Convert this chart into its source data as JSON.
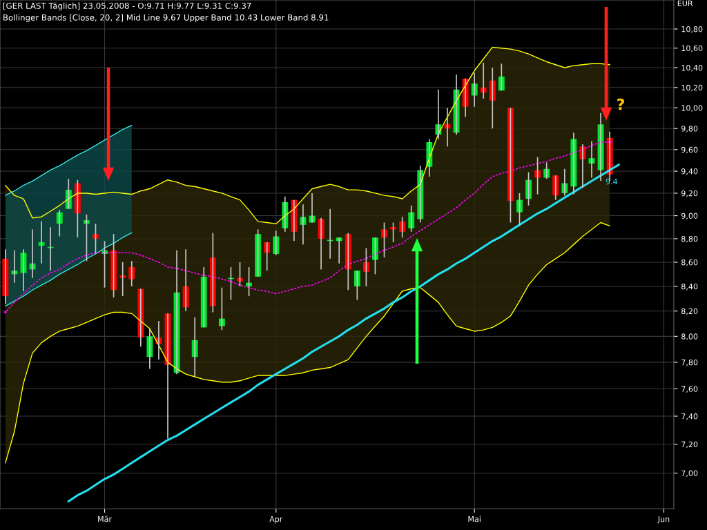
{
  "chart_data": {
    "type": "candlestick",
    "title": "[GER LAST Täglich] 23.05.2008 - O:9.71 H:9.77 L:9.31 C:9.37",
    "subtitle": "Bollinger Bands [Close, 20, 2] Mid Line 9.67 Upper Band 10.43 Lower Band 8.91",
    "ylabel": "EUR",
    "categories": [
      null,
      null,
      null,
      null,
      null,
      null,
      null,
      null,
      null,
      null,
      null,
      "Mär",
      null,
      null,
      null,
      null,
      null,
      null,
      null,
      null,
      null,
      null,
      null,
      null,
      null,
      null,
      null,
      null,
      null,
      null,
      "Apr",
      null,
      null,
      null,
      null,
      null,
      null,
      null,
      null,
      null,
      null,
      null,
      null,
      null,
      null,
      null,
      null,
      null,
      null,
      null,
      null,
      null,
      "Mai",
      null,
      null,
      null,
      null,
      null,
      null,
      null,
      null,
      null,
      null,
      null,
      null,
      null,
      null,
      null,
      null,
      null,
      null,
      null,
      null,
      "Jun"
    ],
    "ohlc": [
      [
        8.63,
        8.71,
        8.26,
        8.32
      ],
      [
        8.5,
        8.7,
        8.43,
        8.53
      ],
      [
        8.51,
        8.71,
        8.36,
        8.68
      ],
      [
        8.54,
        8.88,
        8.47,
        8.59
      ],
      [
        8.74,
        8.95,
        8.59,
        8.77
      ],
      [
        8.72,
        8.9,
        8.53,
        8.73
      ],
      [
        8.93,
        9.05,
        8.82,
        9.03
      ],
      [
        9.06,
        9.33,
        9.06,
        9.23
      ],
      [
        9.29,
        9.32,
        8.81,
        9.02
      ],
      [
        8.93,
        9.01,
        8.61,
        8.96
      ],
      [
        8.84,
        8.93,
        8.67,
        8.8
      ],
      [
        8.67,
        8.78,
        8.39,
        8.7
      ],
      [
        8.7,
        8.84,
        8.31,
        8.37
      ],
      [
        8.49,
        8.6,
        8.32,
        8.47
      ],
      [
        8.56,
        8.61,
        8.4,
        8.46
      ],
      [
        8.38,
        8.38,
        7.92,
        7.99
      ],
      [
        7.84,
        8.06,
        7.75,
        8.0
      ],
      [
        7.99,
        8.12,
        7.82,
        7.94
      ],
      [
        8.18,
        8.18,
        7.24,
        7.78
      ],
      [
        7.72,
        8.7,
        7.71,
        8.35
      ],
      [
        8.4,
        8.71,
        8.2,
        8.23
      ],
      [
        7.84,
        8.15,
        7.69,
        7.97
      ],
      [
        8.07,
        8.56,
        8.07,
        8.48
      ],
      [
        8.64,
        8.85,
        8.19,
        8.24
      ],
      [
        8.08,
        8.39,
        8.05,
        8.14
      ],
      [
        8.46,
        8.56,
        8.29,
        8.47
      ],
      [
        8.47,
        8.6,
        8.4,
        8.44
      ],
      [
        8.4,
        8.56,
        8.32,
        8.43
      ],
      [
        8.48,
        8.88,
        8.48,
        8.84
      ],
      [
        8.77,
        8.77,
        8.53,
        8.68
      ],
      [
        8.67,
        8.87,
        8.66,
        8.82
      ],
      [
        8.89,
        9.17,
        8.86,
        9.12
      ],
      [
        9.14,
        9.14,
        8.78,
        8.86
      ],
      [
        8.92,
        9.1,
        8.75,
        8.99
      ],
      [
        8.94,
        9.2,
        8.94,
        9.0
      ],
      [
        8.97,
        8.98,
        8.54,
        8.8
      ],
      [
        8.78,
        9.06,
        8.63,
        8.79
      ],
      [
        8.78,
        8.81,
        8.59,
        8.81
      ],
      [
        8.84,
        8.85,
        8.37,
        8.54
      ],
      [
        8.4,
        8.53,
        8.29,
        8.53
      ],
      [
        8.6,
        8.72,
        8.4,
        8.52
      ],
      [
        8.62,
        8.81,
        8.5,
        8.81
      ],
      [
        8.88,
        8.94,
        8.64,
        8.81
      ],
      [
        8.9,
        8.94,
        8.77,
        8.88
      ],
      [
        8.95,
        8.99,
        8.81,
        8.86
      ],
      [
        8.89,
        9.09,
        8.86,
        9.03
      ],
      [
        8.97,
        9.45,
        8.94,
        9.41
      ],
      [
        9.44,
        9.7,
        9.35,
        9.67
      ],
      [
        9.74,
        10.18,
        9.7,
        9.84
      ],
      [
        9.84,
        10.0,
        9.63,
        9.8
      ],
      [
        9.76,
        10.33,
        9.74,
        10.18
      ],
      [
        10.29,
        10.29,
        9.91,
        10.01
      ],
      [
        10.12,
        10.35,
        10.01,
        10.24
      ],
      [
        10.2,
        10.45,
        10.09,
        10.15
      ],
      [
        10.27,
        10.4,
        9.8,
        10.07
      ],
      [
        10.17,
        10.44,
        10.17,
        10.31
      ],
      [
        10.0,
        10.0,
        8.94,
        9.13
      ],
      [
        9.03,
        9.2,
        8.91,
        9.14
      ],
      [
        9.15,
        9.39,
        9.09,
        9.32
      ],
      [
        9.41,
        9.53,
        9.19,
        9.34
      ],
      [
        9.34,
        9.48,
        9.33,
        9.42
      ],
      [
        9.36,
        9.36,
        9.14,
        9.18
      ],
      [
        9.2,
        9.42,
        9.18,
        9.29
      ],
      [
        9.26,
        9.76,
        9.19,
        9.7
      ],
      [
        9.63,
        9.65,
        9.25,
        9.51
      ],
      [
        9.47,
        9.68,
        9.34,
        9.52
      ],
      [
        9.41,
        9.95,
        9.31,
        9.84
      ],
      [
        9.71,
        9.77,
        9.31,
        9.37
      ],
      null,
      null,
      null,
      null,
      null,
      null
    ],
    "colors": [
      "#ff0000",
      "#00e62e",
      "#00e62e",
      "#00e62e",
      "#00e62e",
      "#00e62e",
      "#00e62e",
      "#00e62e",
      "#ff0000",
      "#00e62e",
      "#ff0000",
      "#00e62e",
      "#ff0000",
      "#ff0000",
      "#ff0000",
      "#ff0000",
      "#00e62e",
      "#ff0000",
      "#ff0000",
      "#00e62e",
      "#ff0000",
      "#00e62e",
      "#00e62e",
      "#ff0000",
      "#00e62e",
      "#00e62e",
      "#ff0000",
      "#00e62e",
      "#00e62e",
      "#ff0000",
      "#00e62e",
      "#00e62e",
      "#ff0000",
      "#00e62e",
      "#00e62e",
      "#ff0000",
      "#00e62e",
      "#00e62e",
      "#ff0000",
      "#00e62e",
      "#ff0000",
      "#00e62e",
      "#ff0000",
      "#ff0000",
      "#ff0000",
      "#00e62e",
      "#00e62e",
      "#00e62e",
      "#00e62e",
      "#ff0000",
      "#00e62e",
      "#ff0000",
      "#00e62e",
      "#ff0000",
      "#ff0000",
      "#00e62e",
      "#ff0000",
      "#00e62e",
      "#00e62e",
      "#ff0000",
      "#00e62e",
      "#ff0000",
      "#00e62e",
      "#00e62e",
      "#ff0000",
      "#00e62e",
      "#00e62e",
      "#ff0000",
      null,
      null,
      null,
      null,
      null,
      null
    ],
    "series": [
      {
        "type": "line",
        "color": "#ffff00",
        "values": [
          9.27,
          9.18,
          9.15,
          8.98,
          8.99,
          9.04,
          9.09,
          9.15,
          9.2,
          9.2,
          9.19,
          9.2,
          9.21,
          9.2,
          9.19,
          9.22,
          9.24,
          9.28,
          9.32,
          9.3,
          9.27,
          9.26,
          9.24,
          9.22,
          9.2,
          9.17,
          9.14,
          9.05,
          8.95,
          8.94,
          8.93,
          9.0,
          9.06,
          9.15,
          9.24,
          9.26,
          9.28,
          9.26,
          9.23,
          9.23,
          9.22,
          9.2,
          9.18,
          9.17,
          9.15,
          9.22,
          9.28,
          9.52,
          9.75,
          9.91,
          10.07,
          10.22,
          10.37,
          10.49,
          10.61,
          10.6,
          10.59,
          10.57,
          10.54,
          10.5,
          10.46,
          10.43,
          10.4,
          10.42,
          10.43,
          10.44,
          10.44,
          10.43,
          null,
          null,
          null,
          null,
          null,
          null
        ]
      },
      {
        "type": "line",
        "color": "#ffff00",
        "values": [
          7.07,
          7.29,
          7.64,
          7.87,
          7.95,
          8.0,
          8.04,
          8.06,
          8.08,
          8.11,
          8.14,
          8.17,
          8.19,
          8.19,
          8.18,
          8.12,
          8.06,
          7.93,
          7.8,
          7.75,
          7.71,
          7.69,
          7.67,
          7.66,
          7.65,
          7.65,
          7.66,
          7.68,
          7.7,
          7.7,
          7.7,
          7.7,
          7.71,
          7.72,
          7.74,
          7.75,
          7.76,
          7.79,
          7.82,
          7.91,
          8.0,
          8.08,
          8.16,
          8.26,
          8.36,
          8.38,
          8.39,
          8.33,
          8.27,
          8.17,
          8.08,
          8.06,
          8.04,
          8.05,
          8.07,
          8.11,
          8.16,
          8.28,
          8.41,
          8.5,
          8.58,
          8.63,
          8.68,
          8.75,
          8.82,
          8.88,
          8.94,
          8.91,
          null,
          null,
          null,
          null,
          null,
          null
        ]
      },
      {
        "type": "line",
        "color": "#33e6e6",
        "values": [
          9.18,
          9.22,
          9.27,
          9.31,
          9.36,
          9.41,
          9.45,
          9.5,
          9.55,
          9.59,
          9.64,
          9.69,
          9.74,
          9.79,
          9.83,
          null,
          null,
          null,
          null,
          null,
          null,
          null,
          null,
          null,
          null,
          null,
          null,
          null,
          null,
          null,
          null,
          null,
          null,
          null,
          null,
          null,
          null,
          null,
          null,
          null,
          null,
          null,
          null,
          null,
          null,
          null,
          null,
          null,
          null,
          null,
          null,
          null,
          null,
          null,
          null,
          null,
          null,
          null,
          null,
          null,
          null,
          null,
          null,
          null,
          null,
          null,
          null,
          null,
          null,
          null,
          null,
          null,
          null,
          null
        ]
      },
      {
        "type": "line",
        "color": "#33e6e6",
        "values": [
          8.24,
          8.28,
          8.32,
          8.37,
          8.41,
          8.45,
          8.5,
          8.54,
          8.58,
          8.63,
          8.67,
          8.72,
          8.76,
          8.81,
          8.85,
          null,
          null,
          null,
          null,
          null,
          null,
          null,
          null,
          null,
          null,
          null,
          null,
          null,
          null,
          null,
          null,
          null,
          null,
          null,
          null,
          null,
          null,
          null,
          null,
          null,
          null,
          null,
          null,
          null,
          null,
          null,
          null,
          null,
          null,
          null,
          null,
          null,
          null,
          null,
          null,
          null,
          null,
          null,
          null,
          null,
          null,
          null,
          null,
          null,
          null,
          null,
          null,
          null,
          null,
          null,
          null,
          null,
          null,
          null
        ]
      },
      {
        "type": "line",
        "color": "#ff00ff",
        "line_style": "dotted",
        "values": [
          8.19,
          8.27,
          8.34,
          8.41,
          8.47,
          8.51,
          8.54,
          8.59,
          8.63,
          8.66,
          8.68,
          8.68,
          8.68,
          8.68,
          8.68,
          8.66,
          8.63,
          8.6,
          8.56,
          8.55,
          8.53,
          8.51,
          8.49,
          8.48,
          8.46,
          8.44,
          8.41,
          8.39,
          8.37,
          8.36,
          8.34,
          8.36,
          8.38,
          8.4,
          8.41,
          8.44,
          8.47,
          8.53,
          8.58,
          8.61,
          8.63,
          8.67,
          8.7,
          8.73,
          8.76,
          8.82,
          8.87,
          8.92,
          8.97,
          9.02,
          9.07,
          9.14,
          9.2,
          9.28,
          9.35,
          9.38,
          9.4,
          9.43,
          9.45,
          9.47,
          9.49,
          9.52,
          9.54,
          9.57,
          9.6,
          9.64,
          9.67,
          9.67,
          null,
          null,
          null,
          null,
          null,
          null
        ],
        "upper": [
          9.27,
          9.18,
          9.15,
          8.98,
          8.99,
          9.04,
          9.09,
          9.15,
          9.2,
          9.2,
          9.19,
          9.2,
          9.21,
          9.2,
          9.19,
          9.22,
          9.24,
          9.28,
          9.32,
          9.3,
          9.27,
          9.26,
          9.24,
          9.22,
          9.2,
          9.17,
          9.14,
          9.05,
          8.95,
          8.94,
          8.93,
          9.0,
          9.06,
          9.15,
          9.24,
          9.26,
          9.28,
          9.26,
          9.23,
          9.23,
          9.22,
          9.2,
          9.18,
          9.17,
          9.15,
          9.22,
          9.28,
          9.52,
          9.75,
          9.91,
          10.07,
          10.22,
          10.37,
          10.49,
          10.61,
          10.6,
          10.59,
          10.57,
          10.54,
          10.5,
          10.46,
          10.43,
          10.4,
          10.42,
          10.43,
          10.44,
          10.44,
          10.43,
          null,
          null,
          null,
          null,
          null,
          null
        ],
        "lower": [
          7.07,
          7.29,
          7.64,
          7.87,
          7.95,
          8.0,
          8.04,
          8.06,
          8.08,
          8.11,
          8.14,
          8.17,
          8.19,
          8.19,
          8.18,
          8.12,
          8.06,
          7.93,
          7.8,
          7.75,
          7.71,
          7.69,
          7.67,
          7.66,
          7.65,
          7.65,
          7.66,
          7.68,
          7.7,
          7.7,
          7.7,
          7.7,
          7.71,
          7.72,
          7.74,
          7.75,
          7.76,
          7.79,
          7.82,
          7.91,
          8.0,
          8.08,
          8.16,
          8.26,
          8.36,
          8.38,
          8.39,
          8.33,
          8.27,
          8.17,
          8.08,
          8.06,
          8.04,
          8.05,
          8.07,
          8.11,
          8.16,
          8.28,
          8.41,
          8.5,
          8.58,
          8.63,
          8.68,
          8.75,
          8.82,
          8.88,
          8.94,
          8.91,
          null,
          null,
          null,
          null,
          null,
          null
        ]
      },
      {
        "type": "line",
        "color": "#33e6e6",
        "values": [
          null,
          null,
          null,
          null,
          null,
          null,
          null,
          null,
          null,
          null,
          null,
          null,
          null,
          null,
          null,
          null,
          null,
          null,
          null,
          null,
          null,
          null,
          null,
          null,
          null,
          null,
          null,
          null,
          null,
          null,
          null,
          null,
          null,
          null,
          null,
          null,
          null,
          null,
          null,
          null,
          null,
          null,
          null,
          null,
          null,
          null,
          null,
          null,
          null,
          null,
          null,
          null,
          null,
          null,
          null,
          null,
          null,
          null,
          null,
          null,
          null,
          null,
          null,
          null,
          null,
          null,
          null,
          null,
          null,
          null,
          null,
          null,
          null,
          null
        ],
        "upper": [
          9.18,
          9.22,
          9.27,
          9.31,
          9.36,
          9.41,
          9.45,
          9.5,
          9.55,
          9.59,
          9.64,
          9.69,
          9.74,
          9.79,
          9.83,
          null,
          null,
          null,
          null,
          null,
          null,
          null,
          null,
          null,
          null,
          null,
          null,
          null,
          null,
          null,
          null,
          null,
          null,
          null,
          null,
          null,
          null,
          null,
          null,
          null,
          null,
          null,
          null,
          null,
          null,
          null,
          null,
          null,
          null,
          null,
          null,
          null,
          null,
          null,
          null,
          null,
          null,
          null,
          null,
          null,
          null,
          null,
          null,
          null,
          null,
          null,
          null,
          null,
          null,
          null,
          null,
          null,
          null,
          null
        ],
        "lower": [
          8.24,
          8.28,
          8.32,
          8.37,
          8.41,
          8.45,
          8.5,
          8.54,
          8.58,
          8.63,
          8.67,
          8.72,
          8.76,
          8.81,
          8.85,
          null,
          null,
          null,
          null,
          null,
          null,
          null,
          null,
          null,
          null,
          null,
          null,
          null,
          null,
          null,
          null,
          null,
          null,
          null,
          null,
          null,
          null,
          null,
          null,
          null,
          null,
          null,
          null,
          null,
          null,
          null,
          null,
          null,
          null,
          null,
          null,
          null,
          null,
          null,
          null,
          null,
          null,
          null,
          null,
          null,
          null,
          null,
          null,
          null,
          null,
          null,
          null,
          null,
          null,
          null,
          null,
          null,
          null,
          null
        ]
      },
      {
        "type": "line",
        "color": "#22e0f0",
        "values": [
          null,
          null,
          null,
          null,
          null,
          null,
          null,
          6.81,
          6.85,
          6.88,
          6.92,
          6.96,
          6.99,
          7.03,
          7.07,
          7.11,
          7.15,
          7.19,
          7.23,
          7.26,
          7.3,
          7.34,
          7.38,
          7.42,
          7.46,
          7.5,
          7.54,
          7.58,
          7.63,
          7.67,
          7.71,
          7.75,
          7.79,
          7.83,
          7.88,
          7.92,
          7.96,
          8.0,
          8.05,
          8.09,
          8.14,
          8.18,
          8.22,
          8.27,
          8.31,
          8.36,
          8.4,
          8.45,
          8.5,
          8.54,
          8.59,
          8.63,
          8.68,
          8.73,
          8.78,
          8.82,
          8.87,
          8.92,
          8.97,
          9.02,
          9.06,
          9.11,
          9.16,
          9.21,
          9.26,
          9.31,
          9.36,
          9.41,
          9.46,
          null,
          null,
          null,
          null,
          null
        ]
      }
    ],
    "log": true,
    "ylim": [
      6.76,
      11.11
    ],
    "yticks": [
      {
        "value": 7.0,
        "label": "7,00"
      },
      {
        "value": 7.2,
        "label": "7,20"
      },
      {
        "value": 7.4,
        "label": "7,40"
      },
      {
        "value": 7.6,
        "label": "7,60"
      },
      {
        "value": 7.8,
        "label": "7,80"
      },
      {
        "value": 8.0,
        "label": "8,00"
      },
      {
        "value": 8.2,
        "label": "8,20"
      },
      {
        "value": 8.4,
        "label": "8,40"
      },
      {
        "value": 8.6,
        "label": "8,60"
      },
      {
        "value": 8.8,
        "label": "8,80"
      },
      {
        "value": 9.0,
        "label": "9,00"
      },
      {
        "value": 9.2,
        "label": "9,20"
      },
      {
        "value": 9.4,
        "label": "9,40"
      },
      {
        "value": 9.6,
        "label": "9,60"
      },
      {
        "value": 9.8,
        "label": "9,80"
      },
      {
        "value": 10.0,
        "label": "10,00"
      },
      {
        "value": 10.2,
        "label": "10,20"
      },
      {
        "value": 10.4,
        "label": "10,40"
      },
      {
        "value": 10.6,
        "label": "10,60"
      },
      {
        "value": 10.8,
        "label": "10,80"
      }
    ],
    "grid": true,
    "annotations": [
      "?",
      "9.4"
    ]
  }
}
